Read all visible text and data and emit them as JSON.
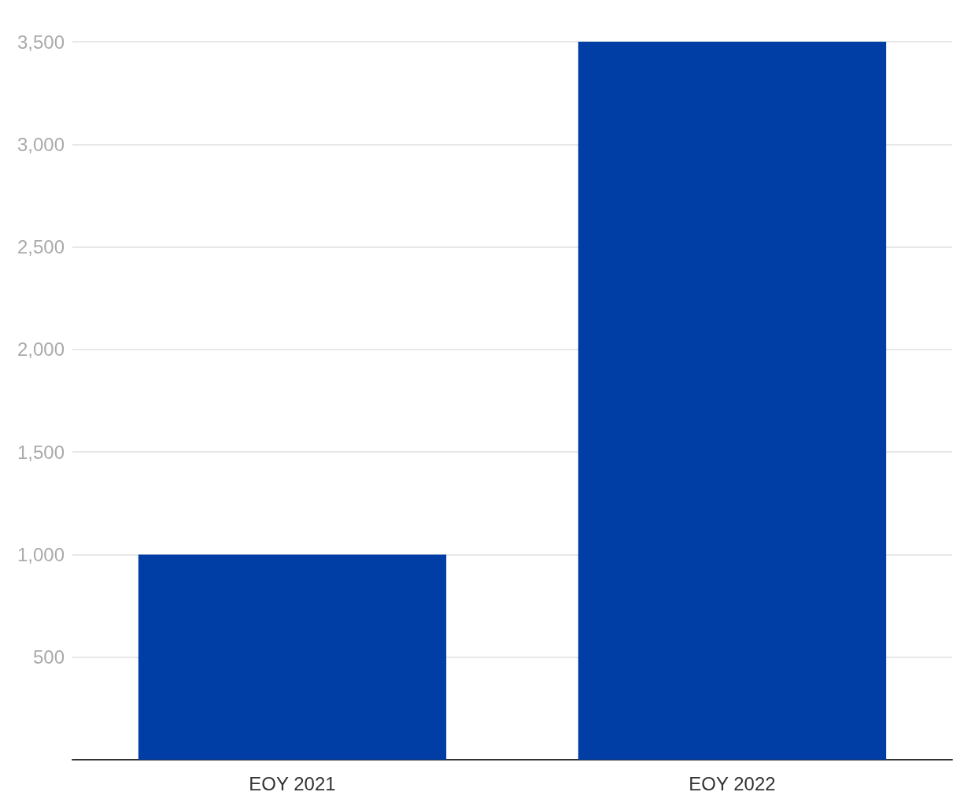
{
  "chart_data": {
    "type": "bar",
    "categories": [
      "EOY 2021",
      "EOY 2022"
    ],
    "values": [
      1000,
      3500
    ],
    "color": "#003da5",
    "ylim": [
      0,
      3500
    ],
    "yticks": [
      {
        "value": 0,
        "label": null
      },
      500,
      {
        "value": 1000,
        "label": "1,000"
      },
      {
        "value": 1500,
        "label": "1,500"
      },
      {
        "value": 2000,
        "label": "2,000"
      },
      {
        "value": 2500,
        "label": "2,500"
      },
      {
        "value": 3000,
        "label": "3,000"
      },
      {
        "value": 3500,
        "label": "3,500"
      }
    ],
    "grid": "y"
  }
}
